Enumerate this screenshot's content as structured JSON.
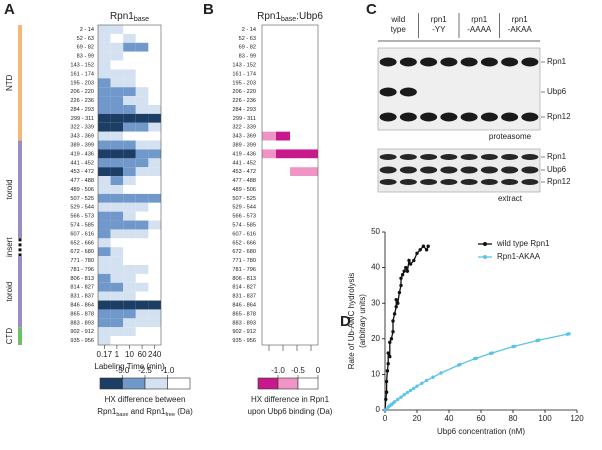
{
  "panel_a": {
    "letter": "A",
    "title": [
      "Rpn1",
      "base"
    ],
    "rows": [
      "2 - 14",
      "52 - 63",
      "69 - 82",
      "83 - 99",
      "143 - 152",
      "161 - 174",
      "195 - 203",
      "206 - 220",
      "226 - 236",
      "284 - 293",
      "299 - 311",
      "322 - 339",
      "343 - 369",
      "389 - 399",
      "419 - 436",
      "441 - 452",
      "453 - 472",
      "477 - 488",
      "489 - 506",
      "507 - 525",
      "529 - 544",
      "566 - 573",
      "574 - 585",
      "607 - 616",
      "652 - 666",
      "672 - 680",
      "771 - 780",
      "781 - 796",
      "806 - 813",
      "814 - 827",
      "831 - 837",
      "846 - 864",
      "865 - 878",
      "883 - 893",
      "902 - 912",
      "935 - 956"
    ],
    "time_labels": [
      "0.17",
      "1",
      "10",
      "60",
      "240"
    ],
    "xlabel": "Labeling Time (min)",
    "domains": [
      "NTD",
      "toroid",
      "insert",
      "toroid",
      "CTD"
    ],
    "colors": [
      "#ffffff",
      "#d4e1f1",
      "#7198cb",
      "#1c3d64"
    ],
    "cells": [
      [
        1,
        1,
        0,
        0,
        0
      ],
      [
        1,
        0,
        1,
        0,
        0
      ],
      [
        1,
        1,
        2,
        2,
        0
      ],
      [
        1,
        1,
        0,
        0,
        0
      ],
      [
        1,
        0,
        0,
        0,
        0
      ],
      [
        1,
        1,
        1,
        0,
        0
      ],
      [
        2,
        1,
        1,
        0,
        0
      ],
      [
        2,
        2,
        2,
        1,
        0
      ],
      [
        2,
        2,
        1,
        1,
        0
      ],
      [
        2,
        2,
        2,
        1,
        1
      ],
      [
        3,
        3,
        3,
        3,
        3
      ],
      [
        3,
        3,
        2,
        2,
        1
      ],
      [
        1,
        1,
        0,
        0,
        0
      ],
      [
        2,
        2,
        2,
        1,
        1
      ],
      [
        3,
        3,
        3,
        2,
        2
      ],
      [
        2,
        2,
        2,
        2,
        1
      ],
      [
        3,
        3,
        2,
        1,
        1
      ],
      [
        1,
        2,
        1,
        0,
        0
      ],
      [
        1,
        1,
        0,
        0,
        0
      ],
      [
        2,
        2,
        2,
        2,
        2
      ],
      [
        1,
        1,
        1,
        1,
        0
      ],
      [
        2,
        2,
        1,
        0,
        0
      ],
      [
        2,
        2,
        2,
        2,
        1
      ],
      [
        2,
        1,
        1,
        1,
        0
      ],
      [
        1,
        0,
        0,
        0,
        0
      ],
      [
        2,
        1,
        0,
        0,
        0
      ],
      [
        1,
        1,
        0,
        0,
        0
      ],
      [
        1,
        1,
        1,
        1,
        0
      ],
      [
        2,
        1,
        1,
        0,
        0
      ],
      [
        2,
        2,
        1,
        1,
        0
      ],
      [
        1,
        1,
        1,
        0,
        0
      ],
      [
        3,
        3,
        3,
        3,
        3
      ],
      [
        2,
        2,
        2,
        1,
        1
      ],
      [
        2,
        2,
        1,
        1,
        1
      ],
      [
        1,
        1,
        1,
        0,
        0
      ],
      [
        1,
        0,
        0,
        0,
        0
      ]
    ],
    "legend_ticks": [
      {
        "value": -5,
        "label": "-5.0"
      },
      {
        "value": -2.5,
        "label": "-2.5"
      },
      {
        "value": -1,
        "label": "-1.0"
      }
    ],
    "caption": "HX difference between",
    "caption_parts": [
      "Rpn1",
      "base",
      " and Rpn1",
      "free",
      " (Da)"
    ]
  },
  "panel_b": {
    "letter": "B",
    "title": [
      "Rpn1",
      "base",
      ":Ubp6"
    ],
    "colors": [
      "#ffffff",
      "#ef94c4",
      "#c8198c"
    ],
    "cells": [
      [
        0,
        0,
        0,
        0
      ],
      [
        0,
        0,
        0,
        0
      ],
      [
        0,
        0,
        0,
        0
      ],
      [
        0,
        0,
        0,
        0
      ],
      [
        0,
        0,
        0,
        0
      ],
      [
        0,
        0,
        0,
        0
      ],
      [
        0,
        0,
        0,
        0
      ],
      [
        0,
        0,
        0,
        0
      ],
      [
        0,
        0,
        0,
        0
      ],
      [
        0,
        0,
        0,
        0
      ],
      [
        0,
        0,
        0,
        0
      ],
      [
        0,
        0,
        0,
        0
      ],
      [
        1,
        2,
        0,
        0
      ],
      [
        0,
        0,
        0,
        0
      ],
      [
        1,
        2,
        2,
        2
      ],
      [
        0,
        0,
        0,
        0
      ],
      [
        0,
        0,
        1,
        1
      ],
      [
        0,
        0,
        0,
        0
      ],
      [
        0,
        0,
        0,
        0
      ],
      [
        0,
        0,
        0,
        0
      ],
      [
        0,
        0,
        0,
        0
      ],
      [
        0,
        0,
        0,
        0
      ],
      [
        0,
        0,
        0,
        0
      ],
      [
        0,
        0,
        0,
        0
      ],
      [
        0,
        0,
        0,
        0
      ],
      [
        0,
        0,
        0,
        0
      ],
      [
        0,
        0,
        0,
        0
      ],
      [
        0,
        0,
        0,
        0
      ],
      [
        0,
        0,
        0,
        0
      ],
      [
        0,
        0,
        0,
        0
      ],
      [
        0,
        0,
        0,
        0
      ],
      [
        0,
        0,
        0,
        0
      ],
      [
        0,
        0,
        0,
        0
      ],
      [
        0,
        0,
        0,
        0
      ],
      [
        0,
        0,
        0,
        0
      ],
      [
        0,
        0,
        0,
        0
      ]
    ],
    "legend_ticks": [
      {
        "value": -1,
        "label": "-1.0"
      },
      {
        "value": -0.5,
        "label": "-0.5"
      },
      0
    ],
    "caption": [
      "HX difference in Rpn1",
      "upon Ubp6 binding (Da)"
    ]
  },
  "panel_c": {
    "letter": "C",
    "lanes": [
      [
        "wild",
        "type"
      ],
      [
        "rpn1",
        "-YY"
      ],
      [
        "rpn1",
        "-AAAA"
      ],
      [
        "rpn1",
        "-AKAA"
      ]
    ],
    "proteasome_bands": [
      "Rpn1",
      "Ubp6",
      "Rpn12"
    ],
    "proteasome_label": "proteasome",
    "extract_bands": [
      "Rpn1",
      "Ubp6",
      "Rpn12"
    ],
    "extract_label": "extract"
  },
  "chart_data": {
    "type": "scatter",
    "letter": "D",
    "xlabel": "Ubp6 concentration (nM)",
    "ylabel": [
      "Rate of Ub-AMC hydrolysis",
      "(arbitrary units)"
    ],
    "xlim": [
      0,
      120
    ],
    "xticks": [
      0,
      20,
      40,
      60,
      80,
      100,
      120
    ],
    "ylim": [
      0,
      50
    ],
    "yticks": [
      0,
      10,
      20,
      30,
      40,
      50
    ],
    "series": [
      {
        "name": "wild type Rpn1",
        "color": "#111111",
        "x": [
          0,
          0.5,
          1,
          1,
          1.5,
          2,
          2,
          3,
          3,
          4,
          5,
          5,
          6,
          7,
          7,
          8,
          9,
          10,
          10,
          11,
          12,
          13,
          14,
          15,
          16,
          18,
          20,
          22,
          24,
          26,
          27
        ],
        "y": [
          0,
          3,
          5,
          8,
          11,
          13,
          16,
          15,
          19,
          20,
          22,
          25,
          27,
          29,
          31,
          30,
          33,
          35,
          37,
          38,
          39,
          40,
          39,
          42,
          41,
          42,
          44,
          45,
          46,
          45,
          46
        ]
      },
      {
        "name": "Rpn1-AKAA",
        "color": "#5cc3ea",
        "x": [
          0,
          2,
          3,
          4,
          5,
          6,
          8,
          10,
          12,
          14,
          16,
          18,
          20,
          23,
          26,
          30,
          35,
          46,
          47,
          56,
          57,
          66,
          67,
          80,
          81,
          95,
          96,
          114,
          115
        ],
        "y": [
          0,
          0.8,
          1.2,
          1.5,
          1.9,
          2.3,
          3,
          3.6,
          4.3,
          4.9,
          5.5,
          6.1,
          6.7,
          7.5,
          8.3,
          9.2,
          10.4,
          12.6,
          12.8,
          14.4,
          14.5,
          15.9,
          16,
          17.8,
          17.9,
          19.5,
          19.6,
          21.3,
          21.4
        ]
      }
    ]
  }
}
